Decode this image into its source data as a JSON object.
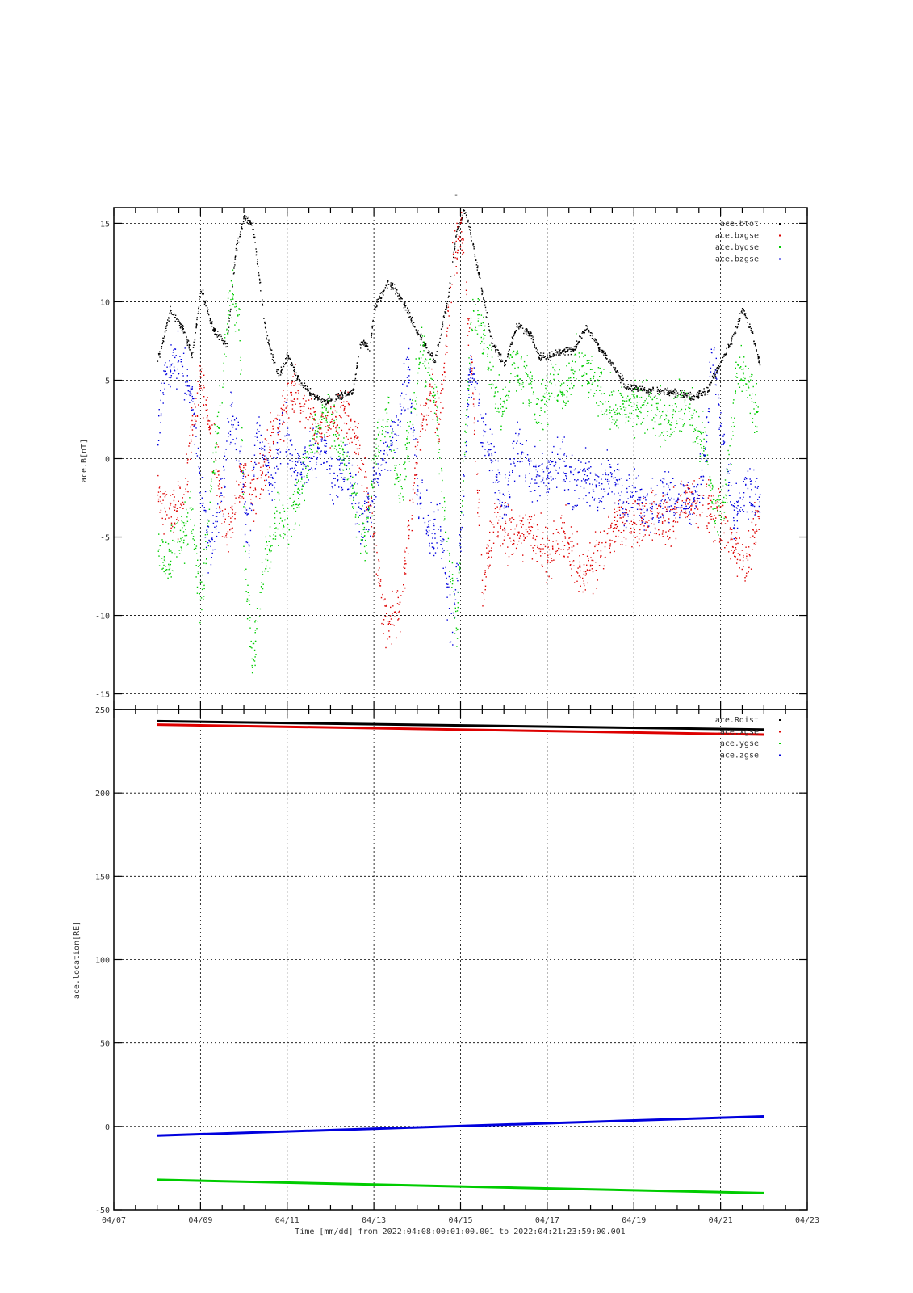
{
  "page": {
    "title": "-"
  },
  "chart_data": [
    {
      "type": "scatter",
      "ylabel": "ace.B[nT]",
      "xlim": [
        "04/07",
        "04/23"
      ],
      "ylim": [
        -16,
        16
      ],
      "yticks": [
        -15,
        -10,
        -5,
        0,
        5,
        10,
        15
      ],
      "grid": true,
      "legend_position": "top-right",
      "series": [
        {
          "name": "ace.btot",
          "color": "#000000",
          "points": [
            [
              "04/08",
              6.2
            ],
            [
              "04/08.3",
              9.5
            ],
            [
              "04/08.6",
              8.2
            ],
            [
              "04/08.8",
              6.5
            ],
            [
              "04/09",
              10.8
            ],
            [
              "04/09.3",
              8.2
            ],
            [
              "04/09.6",
              7.2
            ],
            [
              "04/09.8",
              13.2
            ],
            [
              "04/10",
              15.5
            ],
            [
              "04/10.2",
              14.8
            ],
            [
              "04/10.5",
              8.0
            ],
            [
              "04/10.8",
              5.2
            ],
            [
              "04/11",
              6.6
            ],
            [
              "04/11.3",
              4.8
            ],
            [
              "04/11.6",
              4.0
            ],
            [
              "04/11.9",
              3.6
            ],
            [
              "04/12.2",
              4.0
            ],
            [
              "04/12.5",
              4.2
            ],
            [
              "04/12.7",
              7.5
            ],
            [
              "04/12.9",
              7.0
            ],
            [
              "04/13",
              9.5
            ],
            [
              "04/13.3",
              11.2
            ],
            [
              "04/13.5",
              10.8
            ],
            [
              "04/13.8",
              9.2
            ],
            [
              "04/14",
              8.0
            ],
            [
              "04/14.4",
              6.2
            ],
            [
              "04/14.7",
              10.2
            ],
            [
              "04/14.9",
              14.5
            ],
            [
              "04/15.1",
              15.8
            ],
            [
              "04/15.4",
              12.0
            ],
            [
              "04/15.7",
              7.5
            ],
            [
              "04/16",
              6.0
            ],
            [
              "04/16.3",
              8.5
            ],
            [
              "04/16.6",
              8.0
            ],
            [
              "04/16.8",
              6.5
            ],
            [
              "04/17",
              6.4
            ],
            [
              "04/17.3",
              6.8
            ],
            [
              "04/17.6",
              7.0
            ],
            [
              "04/17.9",
              8.4
            ],
            [
              "04/18.2",
              7.0
            ],
            [
              "04/18.5",
              6.0
            ],
            [
              "04/18.8",
              4.6
            ],
            [
              "04/19.2",
              4.4
            ],
            [
              "04/19.6",
              4.3
            ],
            [
              "04/20",
              4.2
            ],
            [
              "04/20.4",
              3.9
            ],
            [
              "04/20.7",
              4.4
            ],
            [
              "04/21",
              6.2
            ],
            [
              "04/21.3",
              7.8
            ],
            [
              "04/21.5",
              9.6
            ],
            [
              "04/21.7",
              8.2
            ],
            [
              "04/21.9",
              6.0
            ]
          ]
        },
        {
          "name": "ace.bxgse",
          "color": "#dd0000",
          "points": [
            [
              "04/08",
              -2.3
            ],
            [
              "04/08.3",
              -3.6
            ],
            [
              "04/08.6",
              -3.0
            ],
            [
              "04/08.8",
              2.0
            ],
            [
              "04/09",
              5.0
            ],
            [
              "04/09.3",
              0.5
            ],
            [
              "04/09.6",
              -5.0
            ],
            [
              "04/09.8",
              -3.0
            ],
            [
              "04/10",
              -1.0
            ],
            [
              "04/10.3",
              -2.0
            ],
            [
              "04/10.6",
              1.0
            ],
            [
              "04/10.9",
              3.0
            ],
            [
              "04/11.1",
              4.5
            ],
            [
              "04/11.4",
              3.0
            ],
            [
              "04/11.7",
              2.0
            ],
            [
              "04/12",
              2.5
            ],
            [
              "04/12.3",
              3.0
            ],
            [
              "04/12.6",
              1.0
            ],
            [
              "04/12.9",
              -3.0
            ],
            [
              "04/13.1",
              -8.0
            ],
            [
              "04/13.3",
              -10.5
            ],
            [
              "04/13.6",
              -9.5
            ],
            [
              "04/13.8",
              -5.0
            ],
            [
              "04/14",
              1.0
            ],
            [
              "04/14.3",
              4.0
            ],
            [
              "04/14.5",
              2.0
            ],
            [
              "04/14.8",
              12.0
            ],
            [
              "04/15",
              15.0
            ],
            [
              "04/15.2",
              8.0
            ],
            [
              "04/15.5",
              -8.0
            ],
            [
              "04/15.8",
              -4.0
            ],
            [
              "04/16.2",
              -5.0
            ],
            [
              "04/16.6",
              -4.5
            ],
            [
              "04/17",
              -6.0
            ],
            [
              "04/17.4",
              -5.0
            ],
            [
              "04/17.8",
              -7.5
            ],
            [
              "04/18.2",
              -6.0
            ],
            [
              "04/18.6",
              -4.0
            ],
            [
              "04/19",
              -4.5
            ],
            [
              "04/19.4",
              -3.5
            ],
            [
              "04/19.8",
              -4.0
            ],
            [
              "04/20.2",
              -2.5
            ],
            [
              "04/20.6",
              -3.0
            ],
            [
              "04/21",
              -4.0
            ],
            [
              "04/21.3",
              -5.5
            ],
            [
              "04/21.6",
              -6.5
            ],
            [
              "04/21.9",
              -3.5
            ]
          ]
        },
        {
          "name": "ace.bygse",
          "color": "#00cc00",
          "points": [
            [
              "04/08",
              -6.0
            ],
            [
              "04/08.3",
              -6.5
            ],
            [
              "04/08.6",
              -4.5
            ],
            [
              "04/08.8",
              -4.0
            ],
            [
              "04/09",
              -9.5
            ],
            [
              "04/09.2",
              -3.0
            ],
            [
              "04/09.5",
              5.0
            ],
            [
              "04/09.7",
              11.0
            ],
            [
              "04/09.9",
              8.0
            ],
            [
              "04/10",
              -6.0
            ],
            [
              "04/10.2",
              -13.0
            ],
            [
              "04/10.4",
              -8.0
            ],
            [
              "04/10.7",
              -4.0
            ],
            [
              "04/11",
              -4.5
            ],
            [
              "04/11.3",
              -2.0
            ],
            [
              "04/11.6",
              1.5
            ],
            [
              "04/11.9",
              3.0
            ],
            [
              "04/12.2",
              1.0
            ],
            [
              "04/12.5",
              -2.0
            ],
            [
              "04/12.8",
              -5.5
            ],
            [
              "04/13",
              0.0
            ],
            [
              "04/13.3",
              3.0
            ],
            [
              "04/13.6",
              -2.0
            ],
            [
              "04/13.9",
              3.0
            ],
            [
              "04/14.1",
              7.0
            ],
            [
              "04/14.4",
              4.0
            ],
            [
              "04/14.6",
              -3.0
            ],
            [
              "04/14.9",
              -11.0
            ],
            [
              "04/15.1",
              2.0
            ],
            [
              "04/15.3",
              10.0
            ],
            [
              "04/15.6",
              7.0
            ],
            [
              "04/15.9",
              3.0
            ],
            [
              "04/16.2",
              6.0
            ],
            [
              "04/16.5",
              5.0
            ],
            [
              "04/16.8",
              3.0
            ],
            [
              "04/17.1",
              5.0
            ],
            [
              "04/17.4",
              4.0
            ],
            [
              "04/17.7",
              6.0
            ],
            [
              "04/18",
              5.0
            ],
            [
              "04/18.3",
              4.0
            ],
            [
              "04/18.6",
              3.0
            ],
            [
              "04/19",
              3.5
            ],
            [
              "04/19.4",
              3.0
            ],
            [
              "04/19.8",
              2.5
            ],
            [
              "04/20.2",
              3.5
            ],
            [
              "04/20.6",
              1.0
            ],
            [
              "04/20.9",
              -4.0
            ],
            [
              "04/21.1",
              -2.0
            ],
            [
              "04/21.4",
              6.0
            ],
            [
              "04/21.7",
              4.0
            ],
            [
              "04/21.9",
              2.0
            ]
          ]
        },
        {
          "name": "ace.bzgse",
          "color": "#0000dd",
          "points": [
            [
              "04/08",
              1.5
            ],
            [
              "04/08.2",
              6.0
            ],
            [
              "04/08.5",
              6.2
            ],
            [
              "04/08.8",
              4.0
            ],
            [
              "04/09",
              -2.0
            ],
            [
              "04/09.2",
              -6.0
            ],
            [
              "04/09.5",
              -2.0
            ],
            [
              "04/09.7",
              3.0
            ],
            [
              "04/09.9",
              0.0
            ],
            [
              "04/10.1",
              -5.0
            ],
            [
              "04/10.3",
              2.0
            ],
            [
              "04/10.6",
              -2.0
            ],
            [
              "04/10.9",
              2.5
            ],
            [
              "04/11.2",
              -1.0
            ],
            [
              "04/11.5",
              0.0
            ],
            [
              "04/11.8",
              1.0
            ],
            [
              "04/12.1",
              -1.5
            ],
            [
              "04/12.4",
              -0.5
            ],
            [
              "04/12.7",
              -4.5
            ],
            [
              "04/13",
              -2.0
            ],
            [
              "04/13.2",
              0.0
            ],
            [
              "04/13.5",
              2.0
            ],
            [
              "04/13.8",
              5.5
            ],
            [
              "04/14",
              -2.0
            ],
            [
              "04/14.3",
              -5.0
            ],
            [
              "04/14.5",
              -4.0
            ],
            [
              "04/14.8",
              -11.0
            ],
            [
              "04/15",
              -5.0
            ],
            [
              "04/15.2",
              6.0
            ],
            [
              "04/15.4",
              3.0
            ],
            [
              "04/15.7",
              0.0
            ],
            [
              "04/16",
              -3.0
            ],
            [
              "04/16.3",
              1.0
            ],
            [
              "04/16.6",
              -1.0
            ],
            [
              "04/17",
              -1.0
            ],
            [
              "04/17.3",
              0.0
            ],
            [
              "04/17.6",
              -2.0
            ],
            [
              "04/17.9",
              -1.0
            ],
            [
              "04/18.2",
              -2.0
            ],
            [
              "04/18.5",
              -1.0
            ],
            [
              "04/18.8",
              -3.0
            ],
            [
              "04/19.1",
              -2.0
            ],
            [
              "04/19.4",
              -3.5
            ],
            [
              "04/19.7",
              -2.0
            ],
            [
              "04/20",
              -2.5
            ],
            [
              "04/20.3",
              -3.0
            ],
            [
              "04/20.6",
              -1.0
            ],
            [
              "04/20.8",
              7.0
            ],
            [
              "04/21",
              2.0
            ],
            [
              "04/21.3",
              -4.0
            ],
            [
              "04/21.6",
              -2.0
            ],
            [
              "04/21.9",
              -3.0
            ]
          ]
        }
      ]
    },
    {
      "type": "line",
      "ylabel": "ace.location[RE]",
      "xlabel": "Time [mm/dd]  from 2022:04:08:00:01:00.001  to  2022:04:21:23:59:00.001",
      "xlim": [
        "04/07",
        "04/23"
      ],
      "xticks": [
        "04/07",
        "04/09",
        "04/11",
        "04/13",
        "04/15",
        "04/17",
        "04/19",
        "04/21",
        "04/23"
      ],
      "ylim": [
        -50,
        250
      ],
      "yticks": [
        -50,
        0,
        50,
        100,
        150,
        200,
        250
      ],
      "grid": true,
      "legend_position": "top-right",
      "series": [
        {
          "name": "ace.Rdist",
          "color": "#000000",
          "x": [
            "04/08",
            "04/22"
          ],
          "values": [
            243,
            238
          ]
        },
        {
          "name": "ace.xgse",
          "color": "#dd0000",
          "x": [
            "04/08",
            "04/22"
          ],
          "values": [
            241,
            235
          ]
        },
        {
          "name": "ace.ygse",
          "color": "#00cc00",
          "x": [
            "04/08",
            "04/22"
          ],
          "values": [
            -32,
            -40
          ]
        },
        {
          "name": "ace.zgse",
          "color": "#0000dd",
          "x": [
            "04/08",
            "04/22"
          ],
          "values": [
            -5.5,
            6
          ]
        }
      ]
    }
  ]
}
